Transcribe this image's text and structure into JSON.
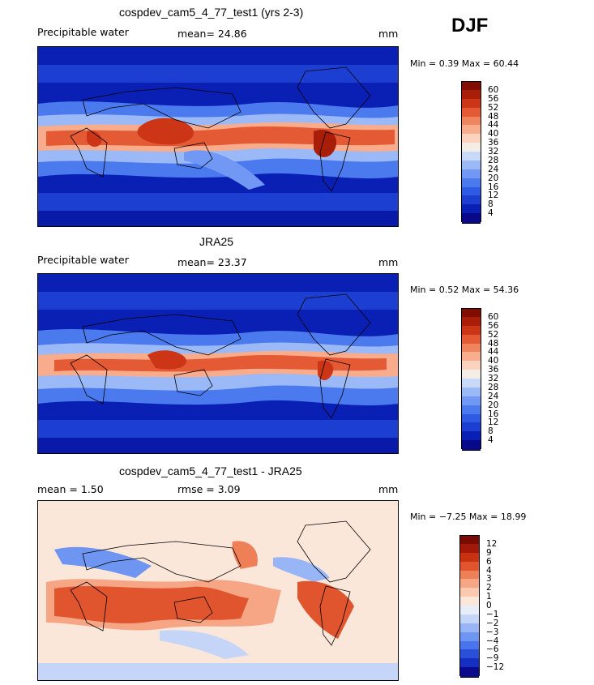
{
  "season": "DJF",
  "panels": [
    {
      "title": "cospdev_cam5_4_77_test1 (yrs 2-3)",
      "left_label": "Precipitable water",
      "center_label": "mean=   24.86",
      "units": "mm",
      "min_max": "Min =    0.39  Max =   60.44",
      "kind": "field",
      "levels": [
        "60",
        "56",
        "52",
        "48",
        "44",
        "40",
        "36",
        "32",
        "28",
        "24",
        "20",
        "16",
        "12",
        "8",
        "4"
      ]
    },
    {
      "title": "JRA25",
      "left_label": "Precipitable water",
      "center_label": "mean=   23.37",
      "units": "mm",
      "min_max": "Min =    0.52  Max =   54.36",
      "kind": "field",
      "levels": [
        "60",
        "56",
        "52",
        "48",
        "44",
        "40",
        "36",
        "32",
        "28",
        "24",
        "20",
        "16",
        "12",
        "8",
        "4"
      ]
    },
    {
      "title": "cospdev_cam5_4_77_test1 - JRA25",
      "left_label": "mean =     1.50",
      "center_label": "rmse =    3.09",
      "units": "mm",
      "min_max": "Min =   −7.25  Max =   18.99",
      "kind": "diff",
      "levels": [
        "12",
        "9",
        "6",
        "4",
        "3",
        "2",
        "1",
        "0",
        "−1",
        "−2",
        "−3",
        "−4",
        "−6",
        "−9",
        "−12"
      ]
    }
  ],
  "colors": {
    "field_scale": [
      "#08088a",
      "#0a20b4",
      "#1d3fd1",
      "#2f5ae3",
      "#4b79ee",
      "#7098f4",
      "#9bb9f7",
      "#c8d9fa",
      "#f3ede6",
      "#fbd2bd",
      "#f8ac8c",
      "#f0845f",
      "#e35a34",
      "#cc3515",
      "#a81e08",
      "#820d02"
    ],
    "diff_scale": [
      "#0a0a8c",
      "#1530c0",
      "#2a4fd8",
      "#4a74ec",
      "#6e95f1",
      "#98b6f5",
      "#c4d5f8",
      "#e8eef9",
      "#fbe6da",
      "#fac9b0",
      "#f6a685",
      "#ef7f57",
      "#e0542e",
      "#c83212",
      "#a21907",
      "#7a0b02"
    ]
  }
}
